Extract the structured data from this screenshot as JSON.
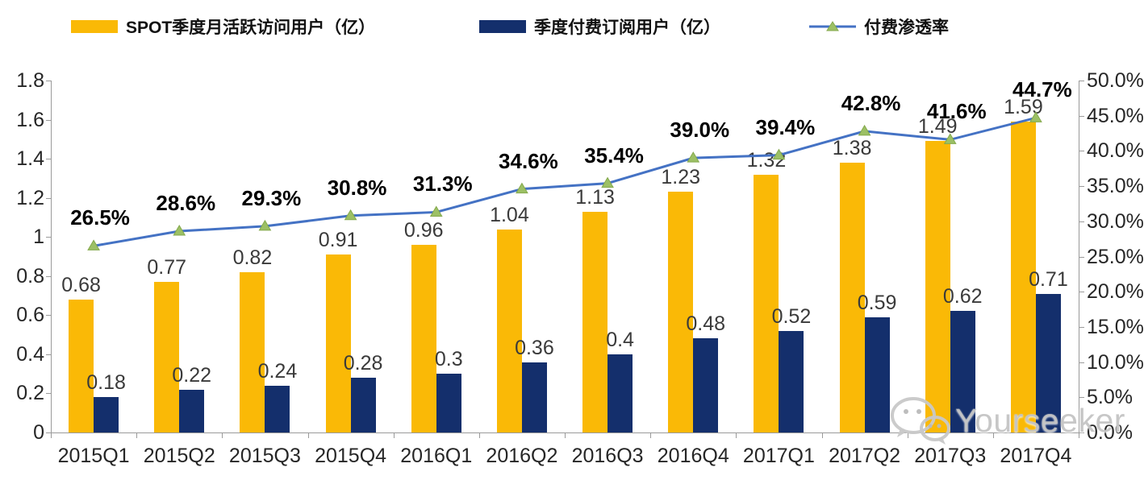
{
  "legend": {
    "items": [
      {
        "label": "SPOT季度月活跃访问用户（亿）",
        "swatch": "bar",
        "color": "#FAB906"
      },
      {
        "label": "季度付费订阅用户（亿）",
        "swatch": "bar",
        "color": "#142F6C"
      },
      {
        "label": "付费渗透率",
        "swatch": "line-marker",
        "line_color": "#4472C4",
        "marker_color": "#9CC065"
      }
    ]
  },
  "watermark": {
    "text": "Yourseeker",
    "icon": "wechat-icon"
  },
  "chart_data": {
    "type": "combo",
    "categories": [
      "2015Q1",
      "2015Q2",
      "2015Q3",
      "2015Q4",
      "2016Q1",
      "2016Q2",
      "2016Q3",
      "2016Q4",
      "2017Q1",
      "2017Q2",
      "2017Q3",
      "2017Q4"
    ],
    "series": [
      {
        "name": "SPOT季度月活跃访问用户（亿）",
        "type": "bar",
        "axis": "left",
        "color": "#FAB906",
        "values": [
          0.68,
          0.77,
          0.82,
          0.91,
          0.96,
          1.04,
          1.13,
          1.23,
          1.32,
          1.38,
          1.49,
          1.59
        ],
        "labels": [
          "0.68",
          "0.77",
          "0.82",
          "0.91",
          "0.96",
          "1.04",
          "1.13",
          "1.23",
          "1.32",
          "1.38",
          "1.49",
          "1.59"
        ]
      },
      {
        "name": "季度付费订阅用户（亿）",
        "type": "bar",
        "axis": "left",
        "color": "#142F6C",
        "values": [
          0.18,
          0.22,
          0.24,
          0.28,
          0.3,
          0.36,
          0.4,
          0.48,
          0.52,
          0.59,
          0.62,
          0.71
        ],
        "labels": [
          "0.18",
          "0.22",
          "0.24",
          "0.28",
          "0.3",
          "0.36",
          "0.4",
          "0.48",
          "0.52",
          "0.59",
          "0.62",
          "0.71"
        ]
      },
      {
        "name": "付费渗透率",
        "type": "line",
        "axis": "right",
        "color": "#4472C4",
        "marker": "triangle",
        "marker_color": "#9CC065",
        "marker_edge_color": "#84A94C",
        "values": [
          26.5,
          28.6,
          29.3,
          30.8,
          31.3,
          34.6,
          35.4,
          39.0,
          39.4,
          42.8,
          41.6,
          44.7
        ],
        "labels": [
          "26.5%",
          "28.6%",
          "29.3%",
          "30.8%",
          "31.3%",
          "34.6%",
          "35.4%",
          "39.0%",
          "39.4%",
          "42.8%",
          "41.6%",
          "44.7%"
        ]
      }
    ],
    "left_axis": {
      "min": 0,
      "max": 1.8,
      "step": 0.2,
      "ticks": [
        "0",
        "0.2",
        "0.4",
        "0.6",
        "0.8",
        "1",
        "1.2",
        "1.4",
        "1.6",
        "1.8"
      ]
    },
    "right_axis": {
      "min": 0,
      "max": 50,
      "step": 5,
      "ticks": [
        "0.0%",
        "5.0%",
        "10.0%",
        "15.0%",
        "20.0%",
        "25.0%",
        "30.0%",
        "35.0%",
        "40.0%",
        "45.0%",
        "50.0%"
      ]
    },
    "grid": false,
    "legend_position": "top",
    "title": ""
  }
}
